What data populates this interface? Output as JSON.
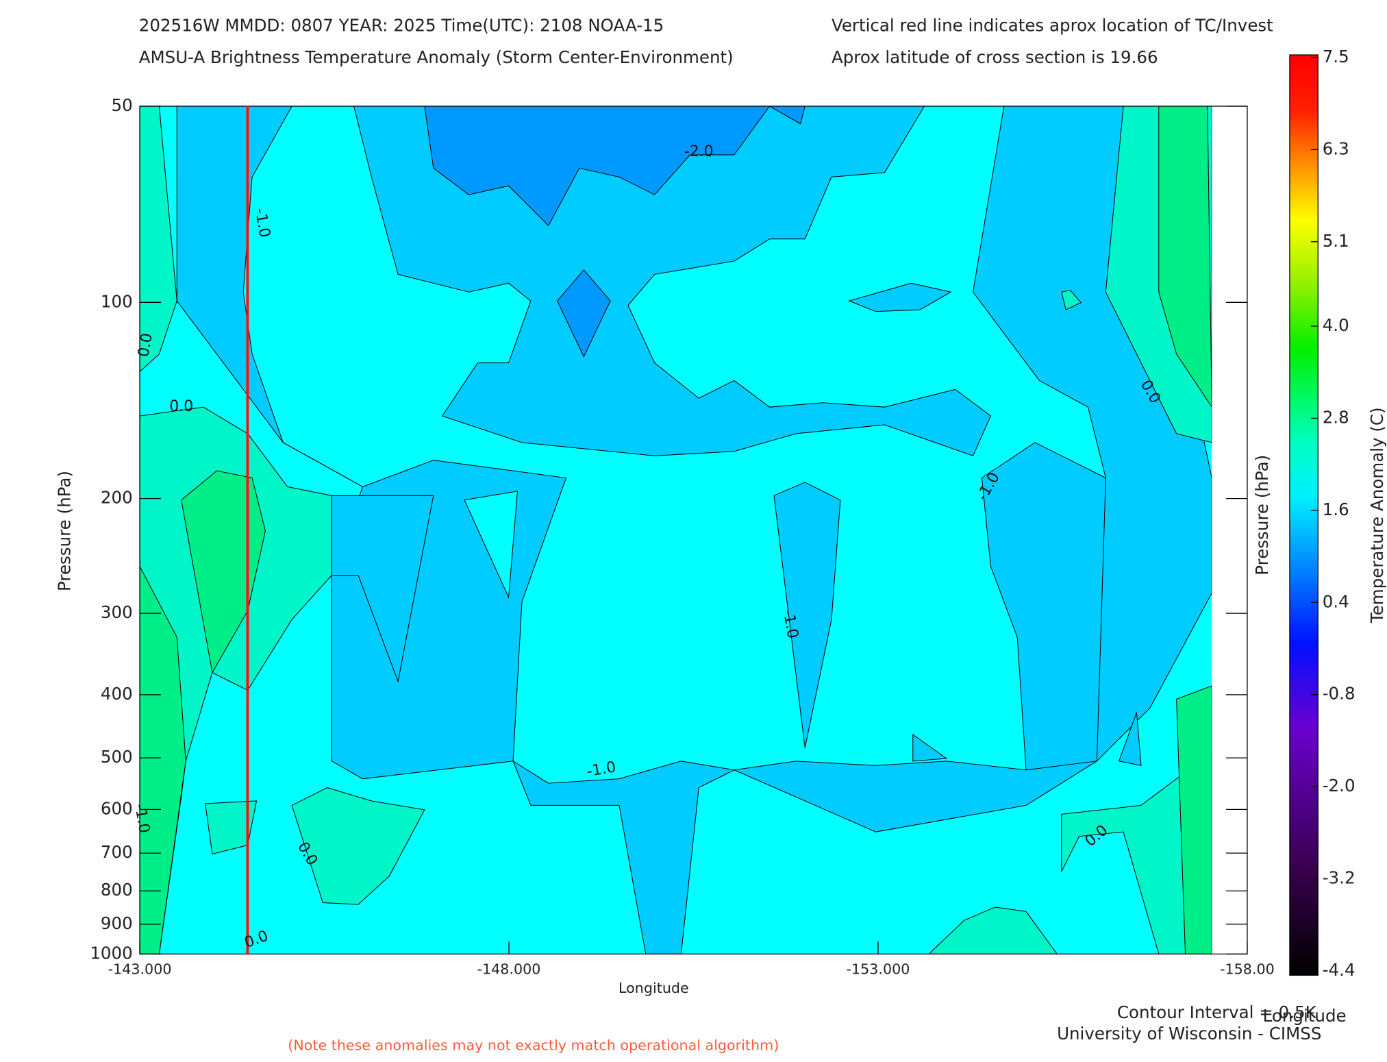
{
  "chart_data": {
    "type": "contour",
    "title": "202516W  MMDD: 0807 YEAR: 2025 Time(UTC): 2108 NOAA-15",
    "subtitle": "AMSU-A Brightness Temperature Anomaly (Storm Center-Environment)",
    "note_right_1": "Vertical red line indicates aprox location of TC/Invest",
    "note_right_2": "Aprox latitude of cross section is 19.66",
    "x_label": "Longitude",
    "y_label": "Pressure (hPa)",
    "y2_label": "Pressure (hPa)",
    "colorbar_label": "Temperature Anomaly (C)",
    "contour_interval": "Contour Interval = 0.5K",
    "corner_label": "Longitude",
    "credit": "University of Wisconsin - CIMSS",
    "disclaimer": "(Note these anomalies may not exactly match operational algorithm)",
    "xlim": [
      -143,
      -158
    ],
    "xticks": [
      {
        "value": -143,
        "label": "-143.000"
      },
      {
        "value": -148,
        "label": "-148.000"
      },
      {
        "value": -153,
        "label": "-153.000"
      },
      {
        "value": -158,
        "label": "-158.00"
      }
    ],
    "ylim": [
      1000,
      50
    ],
    "y_log": true,
    "yticks": [
      50,
      100,
      200,
      300,
      400,
      500,
      600,
      700,
      800,
      900,
      1000
    ],
    "tc_longitude": -144.46,
    "tc_color": "#ff1010",
    "colorbar_lim": [
      -4.4,
      7.5
    ],
    "colorbar_ticks": [
      7.5,
      6.3,
      5.1,
      {
        "value": 4,
        "label": "4.0"
      },
      2.8,
      1.6,
      0.4,
      -0.8,
      {
        "value": -2,
        "label": "-2.0"
      },
      -3.2,
      -4.4
    ],
    "contour_labels": [
      "-2.0",
      "-1.0",
      "0.0",
      "0.0",
      "-1.0",
      "-1.0",
      "0.0",
      "-1.0",
      "0.0",
      "0.0",
      "0.0",
      "-1.0"
    ]
  }
}
